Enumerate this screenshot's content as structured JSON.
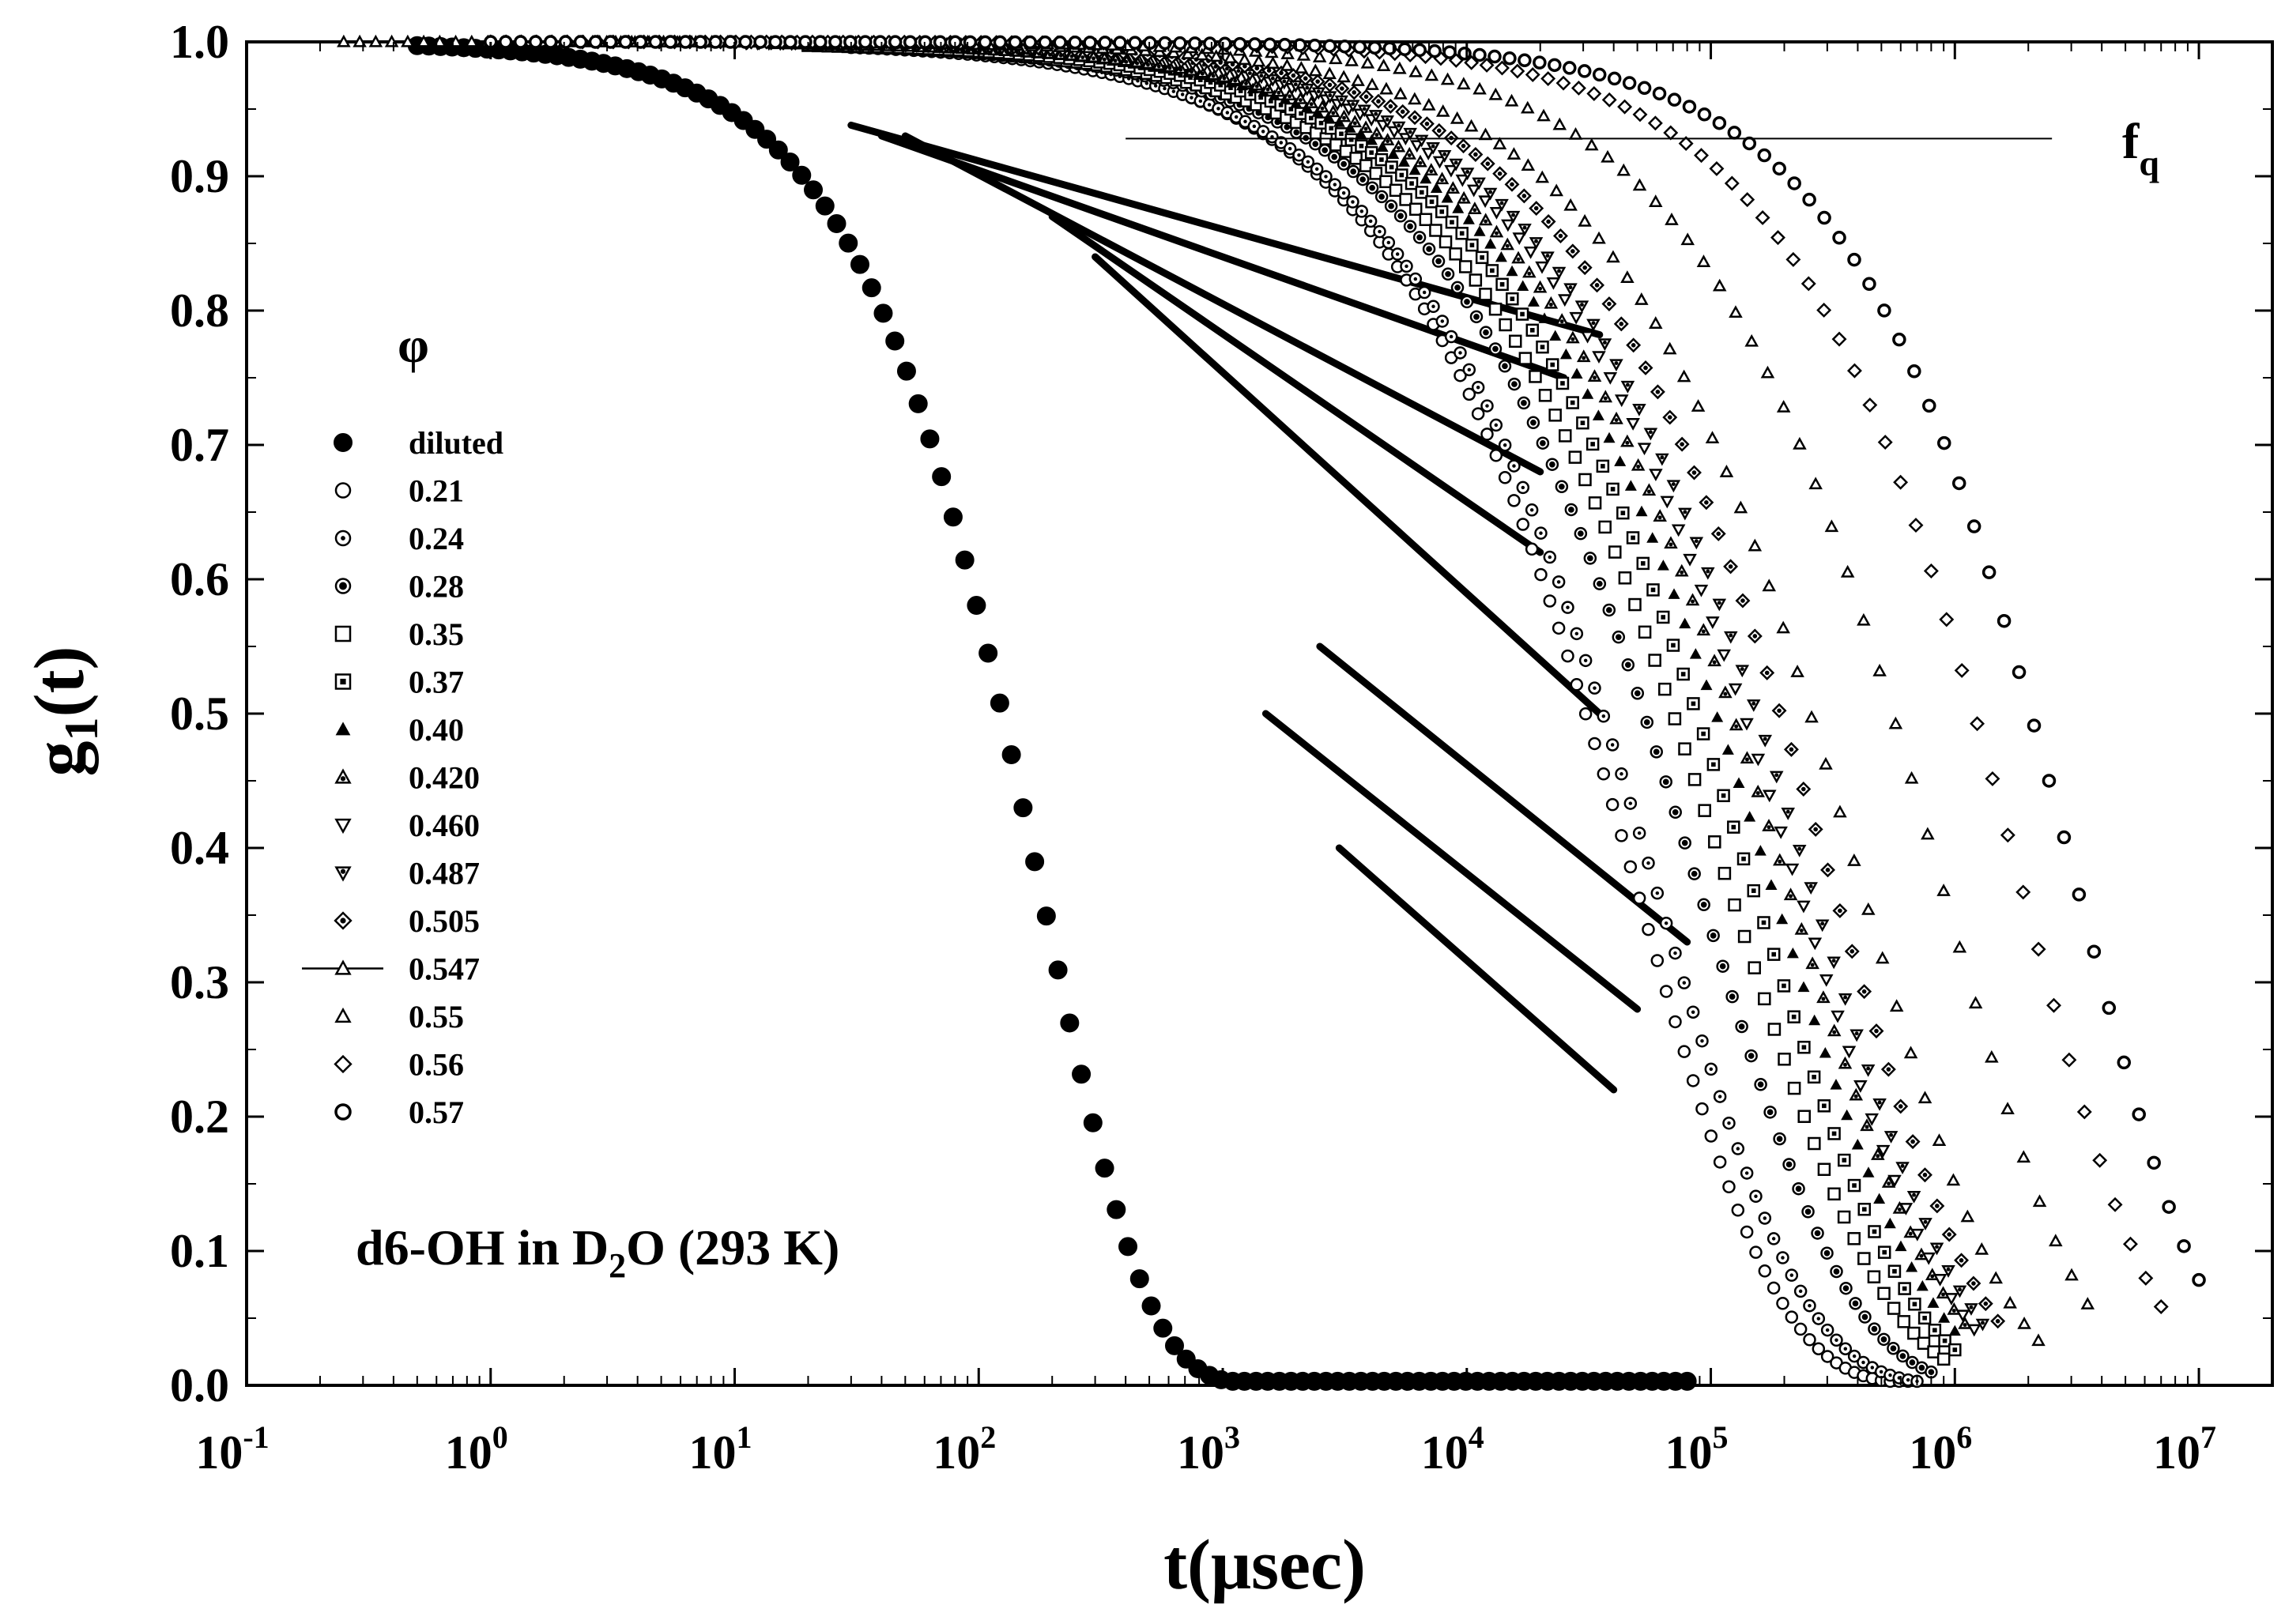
{
  "chart_data": {
    "type": "scatter",
    "xscale": "log",
    "xlim": [
      0.1,
      20000000
    ],
    "ylim": [
      0.0,
      1.0
    ],
    "xlabel": "t(μsec)",
    "ylabel_main": "g",
    "ylabel_sub": "1",
    "ylabel_tail": "(t)",
    "x_ticks": [
      {
        "value": 0.1,
        "base": "10",
        "exp": "-1"
      },
      {
        "value": 1,
        "base": "10",
        "exp": "0"
      },
      {
        "value": 10,
        "base": "10",
        "exp": "1"
      },
      {
        "value": 100,
        "base": "10",
        "exp": "2"
      },
      {
        "value": 1000,
        "base": "10",
        "exp": "3"
      },
      {
        "value": 10000,
        "base": "10",
        "exp": "4"
      },
      {
        "value": 100000,
        "base": "10",
        "exp": "5"
      },
      {
        "value": 1000000,
        "base": "10",
        "exp": "6"
      },
      {
        "value": 10000000,
        "base": "10",
        "exp": "7"
      }
    ],
    "y_ticks": [
      "0.0",
      "0.1",
      "0.2",
      "0.3",
      "0.4",
      "0.5",
      "0.6",
      "0.7",
      "0.8",
      "0.9",
      "1.0"
    ],
    "legend_title": "φ",
    "legend_location": "left-center",
    "annotation": {
      "prefix": "d6-OH in D",
      "sub": "2",
      "suffix": "O  (293 K)"
    },
    "fq_label": {
      "main": "f",
      "sub": "q"
    },
    "fq_line": {
      "value": 0.928,
      "x_from": 400,
      "x_to": 2500000
    },
    "series": [
      {
        "name": "diluted",
        "marker": "circle-filled",
        "tau": 180,
        "beta": 1.0,
        "plateau": 1.0,
        "x_start": 0.5,
        "x_end": 80000,
        "n": 110
      },
      {
        "name": "0.21",
        "marker": "circle-open",
        "tau": 50000,
        "beta": 0.75,
        "plateau": 1.0,
        "x_start": 30,
        "x_end": 700000,
        "n": 120
      },
      {
        "name": "0.24",
        "marker": "circle-dot",
        "tau": 60000,
        "beta": 0.72,
        "plateau": 1.0,
        "x_start": 30,
        "x_end": 700000,
        "n": 120
      },
      {
        "name": "0.28",
        "marker": "circle-dot2",
        "tau": 90000,
        "beta": 0.7,
        "plateau": 1.0,
        "x_start": 30,
        "x_end": 800000,
        "n": 115
      },
      {
        "name": "0.35",
        "marker": "square-open",
        "tau": 120000,
        "beta": 0.68,
        "plateau": 1.0,
        "x_start": 20,
        "x_end": 900000,
        "n": 115
      },
      {
        "name": "0.37",
        "marker": "square-dot",
        "tau": 150000,
        "beta": 0.68,
        "plateau": 1.0,
        "x_start": 20,
        "x_end": 1000000,
        "n": 115
      },
      {
        "name": "0.40",
        "marker": "triangle-filled",
        "tau": 180000,
        "beta": 0.68,
        "plateau": 1.0,
        "x_start": 15,
        "x_end": 1000000,
        "n": 110
      },
      {
        "name": "0.420",
        "marker": "triangle-dot",
        "tau": 210000,
        "beta": 0.68,
        "plateau": 1.0,
        "x_start": 15,
        "x_end": 1100000,
        "n": 110
      },
      {
        "name": "0.460",
        "marker": "triangle-down-open",
        "tau": 230000,
        "beta": 0.7,
        "plateau": 1.0,
        "x_start": 10,
        "x_end": 1200000,
        "n": 110
      },
      {
        "name": "0.487",
        "marker": "triangle-down-dot",
        "tau": 260000,
        "beta": 0.7,
        "plateau": 1.0,
        "x_start": 10,
        "x_end": 1300000,
        "n": 110
      },
      {
        "name": "0.505",
        "marker": "diamond-dot",
        "tau": 320000,
        "beta": 0.72,
        "plateau": 1.0,
        "x_start": 10,
        "x_end": 1500000,
        "n": 105
      },
      {
        "name": "0.547",
        "marker": "triangle-open-line",
        "tau": 420000,
        "beta": 0.74,
        "plateau": 1.0,
        "x_start": 2,
        "x_end": 2200000,
        "n": 105
      },
      {
        "name": "0.55",
        "marker": "triangle-open",
        "tau": 900000,
        "beta": 0.76,
        "plateau": 1.0,
        "x_start": 0.25,
        "x_end": 3500000,
        "n": 110
      },
      {
        "name": "0.56",
        "marker": "diamond-open",
        "tau": 1900000,
        "beta": 0.8,
        "plateau": 1.0,
        "x_start": 1,
        "x_end": 7000000,
        "n": 110
      },
      {
        "name": "0.57",
        "marker": "circle-open-thick",
        "tau": 3200000,
        "beta": 0.82,
        "plateau": 1.0,
        "x_start": 1,
        "x_end": 10000000,
        "n": 115
      }
    ],
    "fit_lines": [
      {
        "x1": 30,
        "y1": 0.938,
        "x2": 35000,
        "y2": 0.782
      },
      {
        "x1": 40,
        "y1": 0.93,
        "x2": 25000,
        "y2": 0.75
      },
      {
        "x1": 50,
        "y1": 0.93,
        "x2": 20000,
        "y2": 0.68
      },
      {
        "x1": 200,
        "y1": 0.87,
        "x2": 20000,
        "y2": 0.62
      },
      {
        "x1": 300,
        "y1": 0.84,
        "x2": 35000,
        "y2": 0.5
      },
      {
        "x1": 2500,
        "y1": 0.55,
        "x2": 80000,
        "y2": 0.33
      },
      {
        "x1": 1500,
        "y1": 0.5,
        "x2": 50000,
        "y2": 0.28
      },
      {
        "x1": 3000,
        "y1": 0.4,
        "x2": 40000,
        "y2": 0.22
      }
    ]
  }
}
